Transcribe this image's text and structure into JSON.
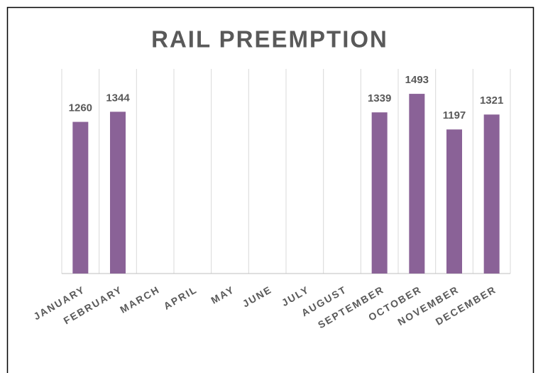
{
  "chart_data": {
    "type": "bar",
    "title": "RAIL PREEMPTION",
    "categories": [
      "JANUARY",
      "FEBRUARY",
      "MARCH",
      "APRIL",
      "MAY",
      "JUNE",
      "JULY",
      "AUGUST",
      "SEPTEMBER",
      "OCTOBER",
      "NOVEMBER",
      "DECEMBER"
    ],
    "values": [
      1260,
      1344,
      null,
      null,
      null,
      null,
      null,
      null,
      1339,
      1493,
      1197,
      1321
    ],
    "color": "#8a6297",
    "ylim": [
      0,
      1700
    ]
  }
}
